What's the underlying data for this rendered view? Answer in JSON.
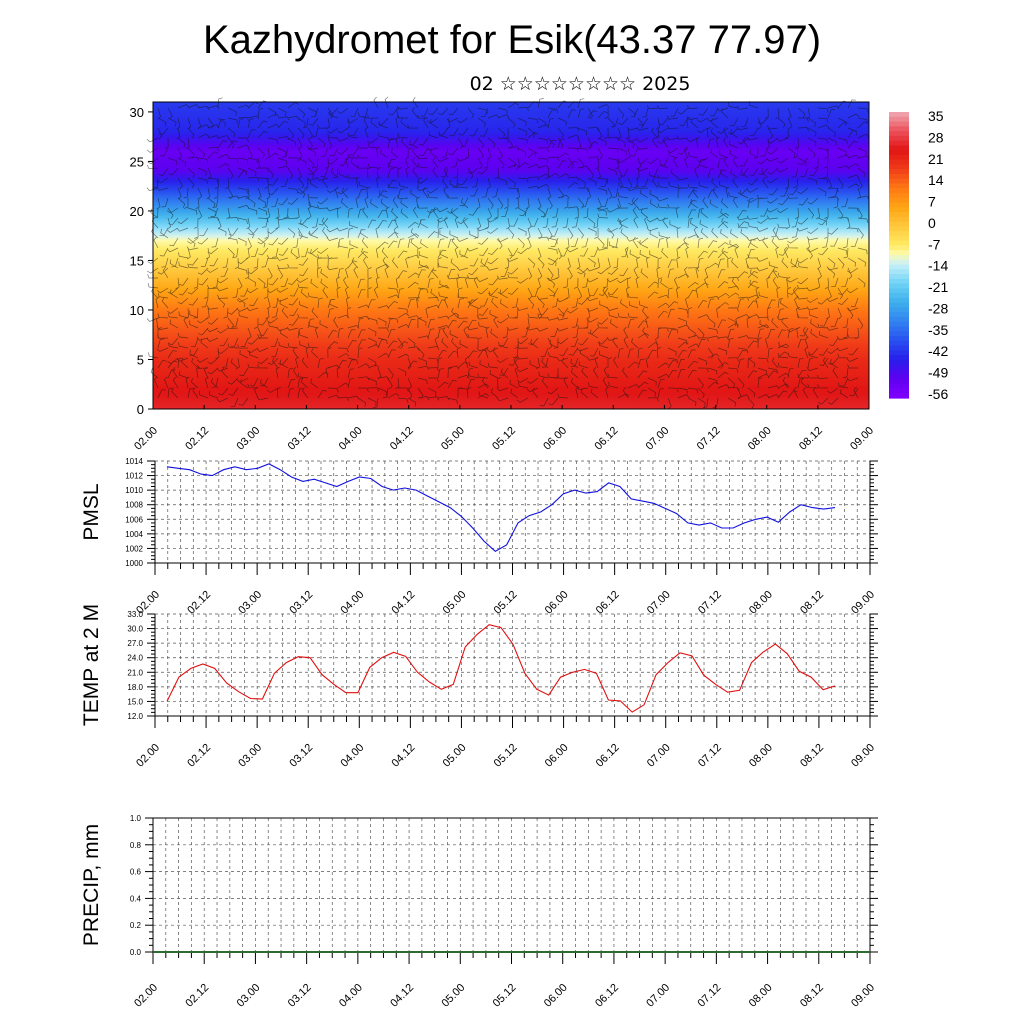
{
  "header": {
    "title": "Kazhydromet for Esik(43.37 77.97)",
    "subtitle": "02 ☆☆☆☆☆☆☆☆ 2025"
  },
  "colors": {
    "pmsl_line": "#1010e0",
    "temp_line": "#e01010",
    "precip_line": "#2e6b2e",
    "grid": "#555555"
  },
  "chart_data": [
    {
      "id": "section",
      "type": "heatmap",
      "title": "",
      "ylabel": "",
      "y_ticks": [
        0,
        5,
        10,
        15,
        20,
        25,
        30
      ],
      "ylim": [
        0,
        31
      ],
      "x_ticks": [
        "02.00",
        "02.12",
        "03.00",
        "03.12",
        "04.00",
        "04.12",
        "05.00",
        "05.12",
        "06.00",
        "06.12",
        "07.00",
        "07.12",
        "08.00",
        "08.12",
        "09.00"
      ],
      "overlay": "wind barbs",
      "colorbar": {
        "labels": [
          "35",
          "28",
          "21",
          "14",
          "7",
          "0",
          "-7",
          "-14",
          "-21",
          "-28",
          "-35",
          "-42",
          "-49",
          "-56"
        ],
        "range": [
          -63,
          42
        ]
      },
      "temperature_profile_by_height": [
        {
          "height": 0,
          "value": 30
        },
        {
          "height": 5,
          "value": 24
        },
        {
          "height": 10,
          "value": 14
        },
        {
          "height": 14,
          "value": 0
        },
        {
          "height": 17,
          "value": -10
        },
        {
          "height": 20,
          "value": -30
        },
        {
          "height": 24,
          "value": -55
        },
        {
          "height": 26,
          "value": -58
        },
        {
          "height": 28,
          "value": -48
        },
        {
          "height": 31,
          "value": -45
        }
      ]
    },
    {
      "id": "pmsl",
      "type": "line",
      "ylabel": "PMSL",
      "ylim": [
        1000,
        1014
      ],
      "y_ticks": [
        "1014",
        "1012",
        "1010",
        "1008",
        "1006",
        "1004",
        "1002",
        "1000"
      ],
      "x_ticks": [
        "02.00",
        "02.12",
        "03.00",
        "03.12",
        "04.00",
        "04.12",
        "05.00",
        "05.12",
        "06.00",
        "06.12",
        "07.00",
        "07.12",
        "08.00",
        "08.12",
        "09.00"
      ],
      "series": [
        {
          "values": [
            1013.2,
            1013.0,
            1012.8,
            1012.2,
            1012.0,
            1012.8,
            1013.2,
            1012.8,
            1013.0,
            1013.6,
            1012.8,
            1011.8,
            1011.2,
            1011.5,
            1011.0,
            1010.5,
            1011.2,
            1011.8,
            1011.6,
            1010.5,
            1010.0,
            1010.3,
            1010.0,
            1009.2,
            1008.4,
            1007.6,
            1006.4,
            1004.8,
            1003.0,
            1001.6,
            1002.5,
            1005.5,
            1006.5,
            1007.0,
            1008.0,
            1009.5,
            1010.0,
            1009.6,
            1009.8,
            1011.0,
            1010.5,
            1008.8,
            1008.5,
            1008.2,
            1007.5,
            1006.8,
            1005.5,
            1005.2,
            1005.5,
            1004.8,
            1004.8,
            1005.5,
            1006.0,
            1006.3,
            1005.6,
            1007.0,
            1008.0,
            1007.6,
            1007.4,
            1007.6
          ]
        }
      ]
    },
    {
      "id": "temp",
      "type": "line",
      "ylabel": "TEMP at 2 M",
      "ylim": [
        12,
        33
      ],
      "y_ticks": [
        "33.0",
        "30.0",
        "27.0",
        "24.0",
        "21.0",
        "18.0",
        "15.0",
        "12.0"
      ],
      "x_ticks": [
        "02.00",
        "02.12",
        "03.00",
        "03.12",
        "04.00",
        "04.12",
        "05.00",
        "05.12",
        "06.00",
        "06.12",
        "07.00",
        "07.12",
        "08.00",
        "08.12",
        "09.00"
      ],
      "series": [
        {
          "values": [
            15.0,
            20.0,
            21.8,
            22.7,
            21.8,
            18.8,
            17.0,
            15.6,
            15.5,
            20.8,
            23.0,
            24.2,
            24.0,
            20.5,
            18.5,
            16.8,
            16.8,
            22.0,
            24.0,
            25.1,
            24.3,
            21.0,
            19.0,
            17.5,
            18.5,
            26.2,
            28.8,
            30.8,
            30.2,
            26.8,
            20.8,
            17.5,
            16.3,
            20.0,
            21.0,
            21.6,
            20.8,
            15.3,
            15.1,
            12.8,
            14.3,
            20.5,
            23.0,
            25.0,
            24.4,
            20.4,
            18.5,
            16.9,
            17.3,
            23.0,
            25.2,
            26.8,
            24.8,
            21.2,
            20.0,
            17.4,
            18.2
          ]
        }
      ]
    },
    {
      "id": "precip",
      "type": "line",
      "ylabel": "PRECIP, mm",
      "ylim": [
        0,
        1
      ],
      "y_ticks": [
        "1.0",
        "0.8",
        "0.6",
        "0.4",
        "0.2",
        "0.0"
      ],
      "x_ticks": [
        "02.00",
        "02.12",
        "03.00",
        "03.12",
        "04.00",
        "04.12",
        "05.00",
        "05.12",
        "06.00",
        "06.12",
        "07.00",
        "07.12",
        "08.00",
        "08.12",
        "09.00"
      ],
      "series": [
        {
          "values": [
            0,
            0,
            0,
            0,
            0,
            0,
            0,
            0,
            0,
            0,
            0,
            0,
            0,
            0,
            0
          ]
        }
      ]
    }
  ]
}
